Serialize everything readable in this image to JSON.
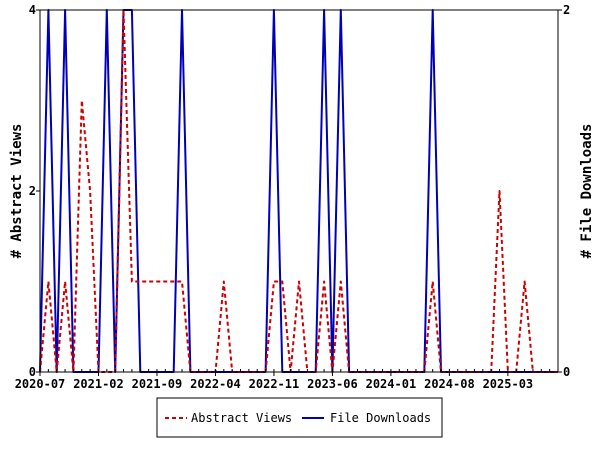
{
  "chart_data": {
    "type": "line",
    "title": "",
    "xlabel": "",
    "ylabel": "# Abstract Views",
    "y2label": "# File Downloads",
    "ylim": [
      0,
      4
    ],
    "y2lim": [
      0,
      2
    ],
    "yticks": [
      "0",
      "2",
      "4"
    ],
    "y2ticks": [
      "0",
      "2"
    ],
    "xtick_labels": [
      "2020-07",
      "2021-02",
      "2021-09",
      "2022-04",
      "2022-11",
      "2023-06",
      "2024-01",
      "2024-08",
      "2025-03"
    ],
    "xtick_index": [
      0,
      7,
      14,
      21,
      28,
      35,
      42,
      49,
      56
    ],
    "n_months": 63,
    "grid": false,
    "legend_position": "bottom",
    "series": [
      {
        "name": "Abstract Views",
        "axis": "left",
        "color": "#cc0000",
        "style": "dashed",
        "points": {
          "1": 1,
          "3": 1,
          "5": 3,
          "6": 2,
          "10": 4,
          "11": 1,
          "12": 1,
          "13": 1,
          "14": 1,
          "15": 1,
          "16": 1,
          "17": 1,
          "22": 1,
          "28": 1,
          "29": 1,
          "31": 1,
          "34": 1,
          "36": 1,
          "47": 1,
          "55": 2,
          "58": 1
        }
      },
      {
        "name": "File Downloads",
        "axis": "right",
        "color": "#0000bb",
        "style": "solid",
        "points": {
          "1": 2,
          "3": 2,
          "8": 2,
          "10": 2,
          "11": 2,
          "17": 2,
          "28": 2,
          "34": 2,
          "36": 2,
          "47": 2
        }
      }
    ]
  }
}
